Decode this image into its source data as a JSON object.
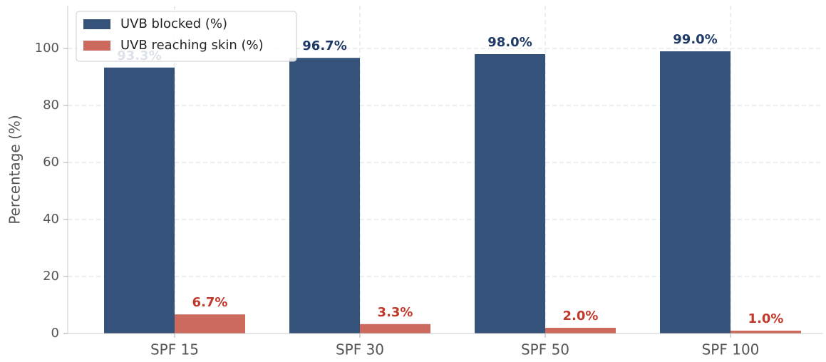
{
  "chart_data": {
    "type": "bar",
    "ylabel": "Percentage (%)",
    "categories": [
      "SPF 15",
      "SPF 30",
      "SPF 50",
      "SPF 100"
    ],
    "series": [
      {
        "name": "UVB blocked (%)",
        "color": "#34527a",
        "label_color": "#1f3a66",
        "values": [
          93.3,
          96.7,
          98.0,
          99.0
        ],
        "value_labels": [
          "93.3%",
          "96.7%",
          "98.0%",
          "99.0%"
        ]
      },
      {
        "name": "UVB reaching skin (%)",
        "color": "#cd6a5e",
        "label_color": "#c0392b",
        "values": [
          6.7,
          3.3,
          2.0,
          1.0
        ],
        "value_labels": [
          "6.7%",
          "3.3%",
          "2.0%",
          "1.0%"
        ]
      }
    ],
    "ylim": [
      0,
      115
    ],
    "yticks": [
      0,
      20,
      40,
      60,
      80,
      100
    ],
    "grid": true,
    "legend": "upper left"
  }
}
